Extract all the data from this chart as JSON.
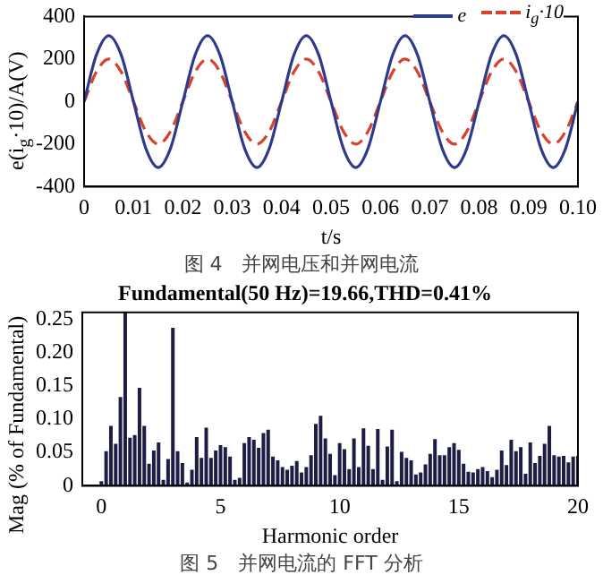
{
  "chart_data": [
    {
      "type": "line",
      "xlabel": "t/s",
      "ylabel": "e(i$_{g}$·10)/A(V)",
      "xlim": [
        0,
        0.1
      ],
      "ylim": [
        -400,
        400
      ],
      "xticks": [
        0,
        {
          "value": 0.01,
          "label": "0.01"
        },
        {
          "value": 0.02,
          "label": "0.02"
        },
        {
          "value": 0.03,
          "label": "0.03"
        },
        {
          "value": 0.04,
          "label": "0.04"
        },
        {
          "value": 0.05,
          "label": "0.05"
        },
        {
          "value": 0.06,
          "label": "0.06"
        },
        {
          "value": 0.07,
          "label": "0.07"
        },
        {
          "value": 0.08,
          "label": "0.08"
        },
        {
          "value": 0.09,
          "label": "0.09"
        },
        {
          "value": 0.1,
          "label": "0.10"
        }
      ],
      "yticks": [
        -400,
        -200,
        0,
        200,
        400
      ],
      "legend": "top right",
      "marker": "none",
      "x": [
        0,
        0.0025,
        0.005,
        0.0075,
        0.01,
        0.0125,
        0.015,
        0.0175,
        0.02,
        0.0225,
        0.025,
        0.0275,
        0.03,
        0.0325,
        0.035,
        0.0375,
        0.04,
        0.0425,
        0.045,
        0.0475,
        0.05,
        0.0525,
        0.055,
        0.0575,
        0.06,
        0.0625,
        0.065,
        0.0675,
        0.07,
        0.0725,
        0.075,
        0.0775,
        0.08,
        0.0825,
        0.085,
        0.0875,
        0.09,
        0.0925,
        0.095,
        0.0975,
        0.1
      ],
      "series": [
        {
          "name": "e",
          "color": "#2e3a8c",
          "line_style": "solid",
          "values": [
            0,
            220,
            310,
            220,
            0,
            -220,
            -310,
            -220,
            0,
            220,
            310,
            220,
            0,
            -220,
            -310,
            -220,
            0,
            220,
            310,
            220,
            0,
            -220,
            -310,
            -220,
            0,
            220,
            310,
            220,
            0,
            -220,
            -310,
            -220,
            0,
            220,
            310,
            220,
            0,
            -220,
            -310,
            -220,
            0
          ]
        },
        {
          "name": "i$_{g}$·10",
          "color": "#d9412e",
          "line_style": "dashed",
          "values": [
            0,
            140,
            200,
            140,
            0,
            -140,
            -200,
            -140,
            0,
            140,
            200,
            140,
            0,
            -140,
            -200,
            -140,
            0,
            140,
            200,
            140,
            0,
            -140,
            -200,
            -140,
            0,
            140,
            200,
            140,
            0,
            -140,
            -200,
            -140,
            0,
            140,
            200,
            140,
            0,
            -140,
            -200,
            -140,
            0
          ]
        }
      ],
      "annotations": [
        "图 4　并网电压和并网电流"
      ]
    },
    {
      "type": "bar",
      "title": "Fundamental(50 Hz)=19.66,THD=0.41%",
      "xlabel": "Harmonic order",
      "ylabel": "Mag (% of Fundamental)",
      "xlim": [
        -0.8,
        20
      ],
      "ylim": [
        0,
        0.26
      ],
      "xticks": [
        0,
        5,
        10,
        15,
        20
      ],
      "yticks": [
        0,
        0.05,
        {
          "value": 0.1,
          "label": "0.10"
        },
        0.15,
        {
          "value": 0.2,
          "label": "0.20"
        },
        0.25
      ],
      "color": "#1c1c44",
      "x": [
        0,
        0.2,
        0.4,
        0.6,
        0.8,
        1,
        1.2,
        1.4,
        1.6,
        1.8,
        2,
        2.2,
        2.4,
        2.6,
        2.8,
        3,
        3.2,
        3.4,
        3.6,
        3.8,
        4,
        4.2,
        4.4,
        4.6,
        4.8,
        5,
        5.2,
        5.4,
        5.6,
        5.8,
        6,
        6.2,
        6.4,
        6.6,
        6.8,
        7,
        7.2,
        7.4,
        7.6,
        7.8,
        8,
        8.2,
        8.4,
        8.6,
        8.8,
        9,
        9.2,
        9.4,
        9.6,
        9.8,
        10,
        10.2,
        10.4,
        10.6,
        10.8,
        11,
        11.2,
        11.4,
        11.6,
        11.8,
        12,
        12.2,
        12.4,
        12.6,
        12.8,
        13,
        13.2,
        13.4,
        13.6,
        13.8,
        14,
        14.2,
        14.4,
        14.6,
        14.8,
        15,
        15.2,
        15.4,
        15.6,
        15.8,
        16,
        16.2,
        16.4,
        16.6,
        16.8,
        17,
        17.2,
        17.4,
        17.6,
        17.8,
        18,
        18.2,
        18.4,
        18.6,
        18.8,
        19,
        19.2,
        19.4,
        19.6,
        19.8,
        20
      ],
      "values": [
        0.007,
        0.052,
        0.09,
        0.063,
        0.133,
        0.26,
        0.072,
        0.076,
        0.147,
        0.09,
        0.033,
        0.053,
        0.065,
        0.009,
        0.04,
        0.237,
        0.052,
        0.034,
        0.005,
        0.024,
        0.073,
        0.042,
        0.087,
        0.042,
        0.053,
        0.061,
        0.058,
        0.044,
        0.009,
        0.012,
        0.064,
        0.073,
        0.069,
        0.057,
        0.079,
        0.084,
        0.044,
        0.038,
        0.028,
        0.024,
        0.03,
        0.037,
        0.02,
        0.028,
        0.046,
        0.093,
        0.105,
        0.071,
        0.048,
        0.016,
        0.064,
        0.055,
        0.025,
        0.071,
        0.028,
        0.086,
        0.06,
        0.025,
        0.085,
        0.009,
        0.059,
        0.084,
        0.007,
        0.051,
        0.042,
        0.038,
        0.017,
        0.02,
        0.032,
        0.048,
        0.07,
        0.046,
        0.046,
        0.058,
        0.064,
        0.054,
        0.033,
        0.021,
        0.02,
        0.025,
        0.028,
        0.022,
        0.013,
        0.024,
        0.053,
        0.031,
        0.069,
        0.052,
        0.058,
        0.018,
        0.065,
        0.034,
        0.045,
        0.063,
        0.09,
        0.046,
        0.044,
        0.045,
        0.035,
        0.044,
        0.045
      ],
      "annotations": [
        "图 5　并网电流的 FFT 分析"
      ]
    }
  ]
}
